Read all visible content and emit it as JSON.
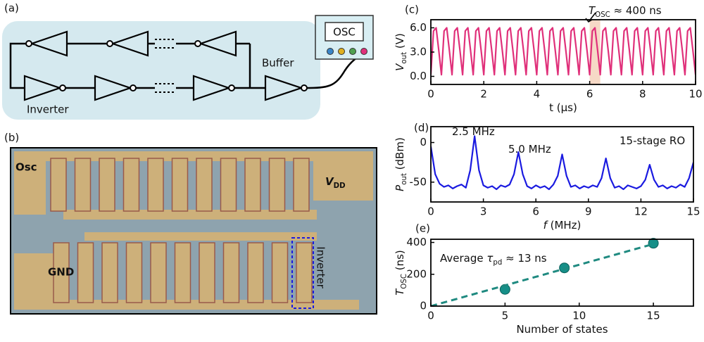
{
  "diagram": {
    "label": "(a)",
    "inverter": "Inverter",
    "buffer": "Buffer",
    "osc": "OSC"
  },
  "photo": {
    "label": "(b)",
    "osc": "Osc",
    "vdd": [
      {
        "text": "V",
        "style": "italic"
      },
      {
        "text": "DD",
        "style": "sub"
      }
    ],
    "gnd": "GND",
    "inverter": "Inverter"
  },
  "chart_data": [
    {
      "type": "line",
      "label": "(c)",
      "xlabel": [
        {
          "text": "t (μs)"
        }
      ],
      "ylabel": [
        {
          "text": "V",
          "style": "italic"
        },
        {
          "text": "out",
          "style": "sub"
        },
        {
          "text": " (V)"
        }
      ],
      "annotations": [
        [
          {
            "text": "T",
            "style": "italic"
          },
          {
            "text": "OSC",
            "style": "sub"
          },
          {
            "text": " ≈ 400 ns"
          }
        ]
      ],
      "highlight_x": [
        6.0,
        6.4
      ],
      "highlight_color": "#f6d9c6",
      "xlim": [
        0,
        10
      ],
      "xticks": [
        0,
        2,
        4,
        6,
        8,
        10
      ],
      "ylim": [
        -1,
        7
      ],
      "yticks": [
        {
          "value": 0,
          "label": "0.0"
        },
        {
          "value": 3,
          "label": "3.0"
        },
        {
          "value": 6,
          "label": "6.0"
        }
      ],
      "x": [
        0,
        0.1,
        0.2,
        0.3,
        0.4,
        0.5,
        0.6,
        0.7,
        0.8,
        0.9,
        1,
        1.1,
        1.2,
        1.3,
        1.4,
        1.5,
        1.6,
        1.7,
        1.8,
        1.9,
        2,
        2.1,
        2.2,
        2.3,
        2.4,
        2.5,
        2.6,
        2.7,
        2.8,
        2.9,
        3,
        3.1,
        3.2,
        3.3,
        3.4,
        3.5,
        3.6,
        3.7,
        3.8,
        3.9,
        4,
        4.1,
        4.2,
        4.3,
        4.4,
        4.5,
        4.6,
        4.7,
        4.8,
        4.9,
        5,
        5.1,
        5.2,
        5.3,
        5.4,
        5.5,
        5.6,
        5.7,
        5.8,
        5.9,
        6,
        6.1,
        6.2,
        6.3,
        6.4,
        6.5,
        6.6,
        6.7,
        6.8,
        6.9,
        7,
        7.1,
        7.2,
        7.3,
        7.4,
        7.5,
        7.6,
        7.7,
        7.8,
        7.9,
        8,
        8.1,
        8.2,
        8.3,
        8.4,
        8.5,
        8.6,
        8.7,
        8.8,
        8.9,
        9,
        9.1,
        9.2,
        9.3,
        9.4,
        9.5,
        9.6,
        9.7,
        9.8,
        9.9,
        10
      ],
      "series": [
        {
          "color": "#e0307a",
          "values": [
            0.2,
            5.6,
            6.0,
            3.2,
            0.2,
            5.6,
            6.0,
            3.2,
            0.2,
            5.6,
            6.0,
            3.2,
            0.2,
            5.6,
            6.0,
            3.2,
            0.2,
            5.6,
            6.0,
            3.2,
            0.2,
            5.6,
            6.0,
            3.2,
            0.2,
            5.6,
            6.0,
            3.2,
            0.2,
            5.6,
            6.0,
            3.2,
            0.2,
            5.6,
            6.0,
            3.2,
            0.2,
            5.6,
            6.0,
            3.2,
            0.2,
            5.6,
            6.0,
            3.2,
            0.2,
            5.6,
            6.0,
            3.2,
            0.2,
            5.6,
            6.0,
            3.2,
            0.2,
            5.6,
            6.0,
            3.2,
            0.2,
            5.6,
            6.0,
            3.2,
            0.2,
            5.6,
            6.0,
            3.2,
            0.2,
            5.6,
            6.0,
            3.2,
            0.2,
            5.6,
            6.0,
            3.2,
            0.2,
            5.6,
            6.0,
            3.2,
            0.2,
            5.6,
            6.0,
            3.2,
            0.2,
            5.6,
            6.0,
            3.2,
            0.2,
            5.6,
            6.0,
            3.2,
            0.2,
            5.6,
            6.0,
            3.2,
            0.2,
            5.6,
            6.0,
            3.2,
            0.2,
            5.6,
            6.0,
            3.2,
            0.2
          ]
        }
      ]
    },
    {
      "type": "line",
      "label": "(d)",
      "xlabel": [
        {
          "text": "f",
          "style": "italic"
        },
        {
          "text": " (MHz)"
        }
      ],
      "ylabel": [
        {
          "text": "P",
          "style": "italic"
        },
        {
          "text": "out",
          "style": "sub"
        },
        {
          "text": " (dBm)"
        }
      ],
      "annotations": [
        [
          {
            "text": "2.5 MHz"
          }
        ],
        [
          {
            "text": "5.0 MHz"
          }
        ],
        [
          {
            "text": "15-stage RO"
          }
        ]
      ],
      "xlim": [
        0,
        15
      ],
      "xticks": [
        0,
        3,
        6,
        9,
        12,
        15
      ],
      "ylim": [
        -75,
        20
      ],
      "yticks": [
        -50,
        0
      ],
      "x": [
        0,
        0.25,
        0.5,
        0.75,
        1,
        1.25,
        1.5,
        1.75,
        2,
        2.25,
        2.5,
        2.75,
        3,
        3.25,
        3.5,
        3.75,
        4,
        4.25,
        4.5,
        4.75,
        5,
        5.25,
        5.5,
        5.75,
        6,
        6.25,
        6.5,
        6.75,
        7,
        7.25,
        7.5,
        7.75,
        8,
        8.25,
        8.5,
        8.75,
        9,
        9.25,
        9.5,
        9.75,
        10,
        10.25,
        10.5,
        10.75,
        11,
        11.25,
        11.5,
        11.75,
        12,
        12.25,
        12.5,
        12.75,
        13,
        13.25,
        13.5,
        13.75,
        14,
        14.25,
        14.5,
        14.75,
        15
      ],
      "series": [
        {
          "color": "#1a1ae0",
          "values": [
            -5,
            -40,
            -52,
            -56,
            -54,
            -58,
            -55,
            -53,
            -57,
            -35,
            8,
            -35,
            -54,
            -57,
            -55,
            -59,
            -54,
            -56,
            -53,
            -40,
            -12,
            -40,
            -55,
            -58,
            -54,
            -57,
            -55,
            -59,
            -53,
            -42,
            -15,
            -42,
            -56,
            -54,
            -58,
            -55,
            -57,
            -54,
            -56,
            -45,
            -20,
            -45,
            -57,
            -55,
            -59,
            -54,
            -56,
            -58,
            -55,
            -47,
            -28,
            -47,
            -56,
            -54,
            -58,
            -55,
            -57,
            -53,
            -56,
            -45,
            -25
          ]
        }
      ]
    },
    {
      "type": "scatter",
      "label": "(e)",
      "xlabel": [
        {
          "text": "Number of states"
        }
      ],
      "ylabel": [
        {
          "text": "T",
          "style": "italic"
        },
        {
          "text": "OSC",
          "style": "sub"
        },
        {
          "text": " (ns)"
        }
      ],
      "annotations": [
        [
          {
            "text": "Average "
          },
          {
            "text": "τ",
            "style": "italic"
          },
          {
            "text": "pd",
            "style": "sub"
          },
          {
            "text": " ≈ 13 ns"
          }
        ]
      ],
      "xlim": [
        0,
        17.7
      ],
      "xticks": [
        0,
        5,
        10,
        15
      ],
      "ylim": [
        0,
        420
      ],
      "yticks": [
        0,
        200,
        400
      ],
      "series": [
        {
          "color": "#168f88",
          "x": [
            5,
            9,
            15
          ],
          "values": [
            105,
            240,
            395
          ]
        },
        {
          "type": "line",
          "dashed": true,
          "color": "#1f8a80",
          "x": [
            0,
            15
          ],
          "values": [
            0,
            390
          ]
        }
      ]
    }
  ]
}
